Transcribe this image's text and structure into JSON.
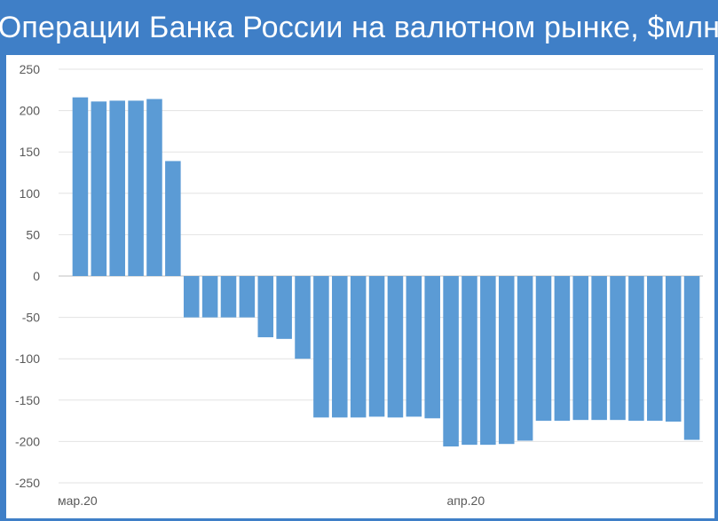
{
  "chart_data": {
    "type": "bar",
    "title": "Операции Банка России на валютном рынке, $млн",
    "xlabel": "",
    "ylabel": "",
    "ylim": [
      -250,
      250
    ],
    "y_ticks": [
      250,
      200,
      150,
      100,
      50,
      0,
      -50,
      -100,
      -150,
      -200,
      -250
    ],
    "x_tick_labels": [
      {
        "label": "мар.20",
        "index": 0
      },
      {
        "label": "апр.20",
        "index": 21
      }
    ],
    "grid": true,
    "legend": "none",
    "bar_color": "#5b9bd5",
    "values": [
      216,
      211,
      212,
      212,
      214,
      139,
      -50,
      -50,
      -50,
      -50,
      -74,
      -76,
      -100,
      -171,
      -171,
      -171,
      -170,
      -171,
      -170,
      -172,
      -206,
      -204,
      -204,
      -203,
      -199,
      -175,
      -175,
      -174,
      -174,
      -174,
      -175,
      -175,
      -176,
      -198
    ]
  }
}
